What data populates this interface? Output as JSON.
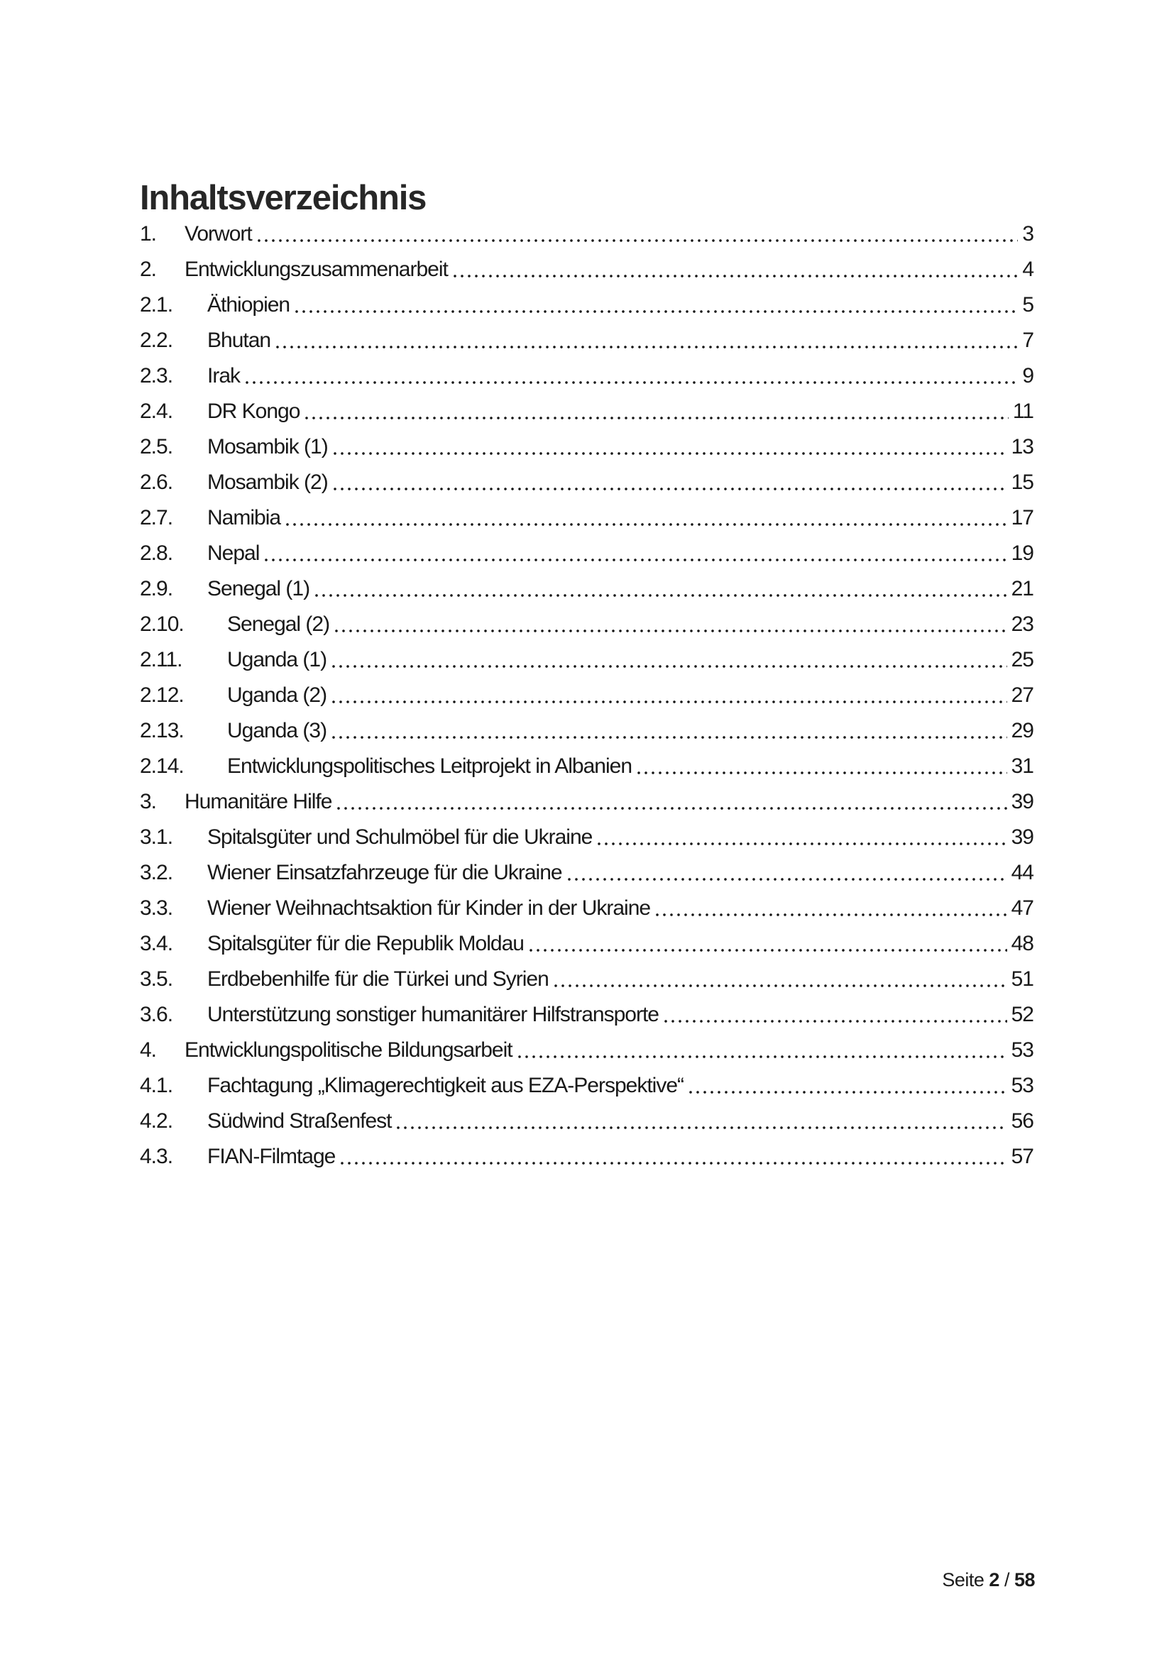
{
  "doc": {
    "title": "Inhaltsverzeichnis"
  },
  "toc": {
    "entries": [
      {
        "num": "1.",
        "label": "Vorwort",
        "page": "3",
        "indent": "l1"
      },
      {
        "num": "2.",
        "label": "Entwicklungszusammenarbeit",
        "page": "4",
        "indent": "l1"
      },
      {
        "num": "2.1.",
        "label": "Äthiopien",
        "page": "5",
        "indent": "l2"
      },
      {
        "num": "2.2.",
        "label": "Bhutan",
        "page": "7",
        "indent": "l2"
      },
      {
        "num": "2.3.",
        "label": "Irak",
        "page": "9",
        "indent": "l2"
      },
      {
        "num": "2.4.",
        "label": "DR Kongo",
        "page": "11",
        "indent": "l2"
      },
      {
        "num": "2.5.",
        "label": "Mosambik (1)",
        "page": "13",
        "indent": "l2"
      },
      {
        "num": "2.6.",
        "label": "Mosambik (2)",
        "page": "15",
        "indent": "l2"
      },
      {
        "num": "2.7.",
        "label": "Namibia",
        "page": "17",
        "indent": "l2"
      },
      {
        "num": "2.8.",
        "label": "Nepal",
        "page": "19",
        "indent": "l2"
      },
      {
        "num": "2.9.",
        "label": "Senegal (1)",
        "page": "21",
        "indent": "l2"
      },
      {
        "num": "2.10.",
        "label": "Senegal (2)",
        "page": "23",
        "indent": "l2w"
      },
      {
        "num": "2.11.",
        "label": "Uganda (1)",
        "page": "25",
        "indent": "l2w"
      },
      {
        "num": "2.12.",
        "label": "Uganda (2)",
        "page": "27",
        "indent": "l2w"
      },
      {
        "num": "2.13.",
        "label": "Uganda (3)",
        "page": "29",
        "indent": "l2w"
      },
      {
        "num": "2.14.",
        "label": "Entwicklungspolitisches Leitprojekt in Albanien",
        "page": "31",
        "indent": "l2w"
      },
      {
        "num": "3.",
        "label": "Humanitäre Hilfe",
        "page": "39",
        "indent": "l1"
      },
      {
        "num": "3.1.",
        "label": "Spitalsgüter und Schulmöbel für die Ukraine",
        "page": "39",
        "indent": "l2"
      },
      {
        "num": "3.2.",
        "label": "Wiener Einsatzfahrzeuge für die Ukraine",
        "page": "44",
        "indent": "l2"
      },
      {
        "num": "3.3.",
        "label": "Wiener Weihnachtsaktion für Kinder in der Ukraine",
        "page": "47",
        "indent": "l2"
      },
      {
        "num": "3.4.",
        "label": "Spitalsgüter für die Republik Moldau",
        "page": "48",
        "indent": "l2"
      },
      {
        "num": "3.5.",
        "label": "Erdbebenhilfe für die Türkei und Syrien",
        "page": "51",
        "indent": "l2"
      },
      {
        "num": "3.6.",
        "label": "Unterstützung sonstiger humanitärer Hilfstransporte",
        "page": "52",
        "indent": "l2"
      },
      {
        "num": "4.",
        "label": "Entwicklungspolitische Bildungsarbeit",
        "page": "53",
        "indent": "l1"
      },
      {
        "num": "4.1.",
        "label": "Fachtagung „Klimagerechtigkeit aus EZA-Perspektive“",
        "page": "53",
        "indent": "l2"
      },
      {
        "num": "4.2.",
        "label": "Südwind Straßenfest",
        "page": "56",
        "indent": "l2"
      },
      {
        "num": "4.3.",
        "label": "FIAN-Filmtage",
        "page": "57",
        "indent": "l2"
      }
    ]
  },
  "footer": {
    "label": "Seite",
    "current": "2",
    "separator": "/",
    "total": "58"
  }
}
